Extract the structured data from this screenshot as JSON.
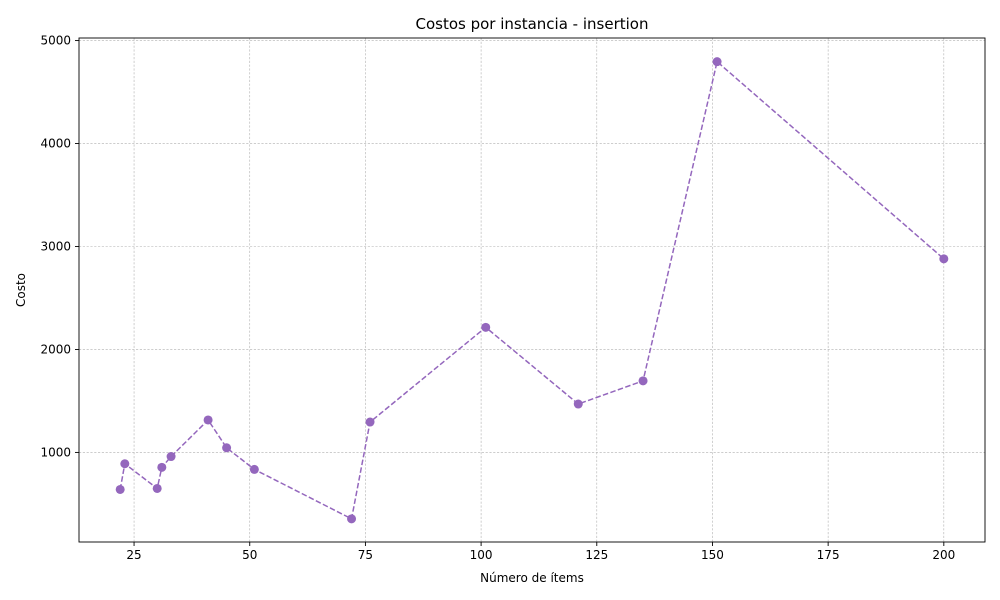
{
  "chart_data": {
    "type": "line",
    "title": "Costos por instancia - insertion",
    "xlabel": "Número de ítems",
    "ylabel": "Costo",
    "xlim": [
      13.1,
      208.9
    ],
    "ylim": [
      130,
      5025
    ],
    "xticks": [
      25,
      50,
      75,
      100,
      125,
      150,
      175,
      200
    ],
    "yticks": [
      1000,
      2000,
      3000,
      4000,
      5000
    ],
    "grid": true,
    "line_style": "dashed",
    "marker": "circle",
    "color": "#9467bd",
    "series": [
      {
        "x": [
          22,
          23,
          30,
          31,
          33,
          41,
          45,
          51,
          72,
          76,
          101,
          121,
          135,
          151,
          200
        ],
        "y": [
          640,
          890,
          650,
          855,
          960,
          1315,
          1045,
          835,
          355,
          1295,
          2215,
          1470,
          1695,
          4795,
          2880
        ]
      }
    ]
  }
}
